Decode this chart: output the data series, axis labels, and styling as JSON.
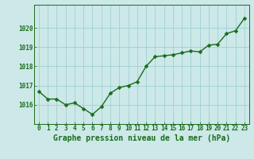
{
  "x": [
    0,
    1,
    2,
    3,
    4,
    5,
    6,
    7,
    8,
    9,
    10,
    11,
    12,
    13,
    14,
    15,
    16,
    17,
    18,
    19,
    20,
    21,
    22,
    23
  ],
  "y": [
    1016.7,
    1016.3,
    1016.3,
    1016.0,
    1016.1,
    1015.8,
    1015.5,
    1015.9,
    1016.6,
    1016.9,
    1017.0,
    1017.2,
    1018.0,
    1018.5,
    1018.55,
    1018.6,
    1018.7,
    1018.8,
    1018.75,
    1019.1,
    1019.15,
    1019.7,
    1019.85,
    1020.5
  ],
  "line_color": "#1a6b1a",
  "marker_color": "#1a6b1a",
  "bg_color": "#cce8e8",
  "grid_color": "#99cccc",
  "title": "Graphe pression niveau de la mer (hPa)",
  "title_color": "#1a6b1a",
  "ylim": [
    1015.0,
    1021.2
  ],
  "yticks": [
    1016,
    1017,
    1018,
    1019,
    1020
  ],
  "xticks": [
    0,
    1,
    2,
    3,
    4,
    5,
    6,
    7,
    8,
    9,
    10,
    11,
    12,
    13,
    14,
    15,
    16,
    17,
    18,
    19,
    20,
    21,
    22,
    23
  ],
  "tick_color": "#1a6b1a",
  "tick_fontsize": 5.5,
  "title_fontsize": 7.0,
  "line_width": 1.0,
  "marker_size": 2.5
}
